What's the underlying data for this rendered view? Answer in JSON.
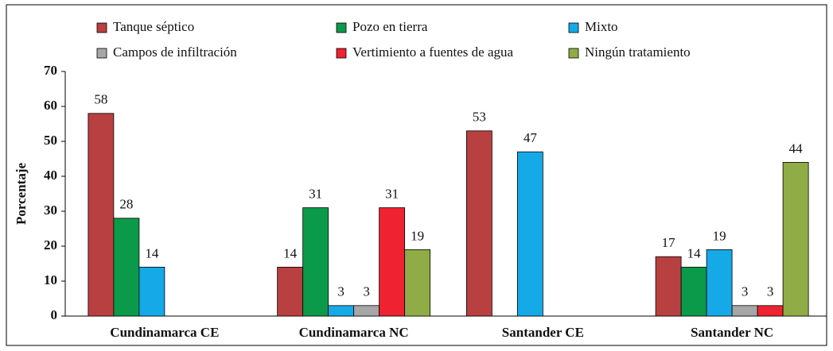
{
  "chart_data": {
    "type": "bar",
    "y_label": "Porcentaje",
    "categories": [
      "Cundinamarca CE",
      "Cundinamarca NC",
      "Santander CE",
      "Santander NC"
    ],
    "series": [
      {
        "name": "Tanque séptico",
        "color": "#b94040",
        "values": [
          58,
          14,
          53,
          17
        ]
      },
      {
        "name": "Pozo en tierra",
        "color": "#0b9a4a",
        "values": [
          28,
          31,
          null,
          14
        ]
      },
      {
        "name": "Mixto",
        "color": "#16a9e8",
        "values": [
          14,
          3,
          47,
          19
        ]
      },
      {
        "name": "Campos de infiltración",
        "color": "#a6a6a6",
        "values": [
          null,
          3,
          null,
          3
        ]
      },
      {
        "name": "Vertimiento a fuentes de agua",
        "color": "#ee2230",
        "values": [
          null,
          31,
          null,
          3
        ]
      },
      {
        "name": "Ningún tratamiento",
        "color": "#8fac46",
        "values": [
          null,
          19,
          null,
          44
        ]
      }
    ],
    "ylim": [
      0,
      70
    ],
    "yticks": [
      0,
      10,
      20,
      30,
      40,
      50,
      60,
      70
    ],
    "legend": "top"
  }
}
